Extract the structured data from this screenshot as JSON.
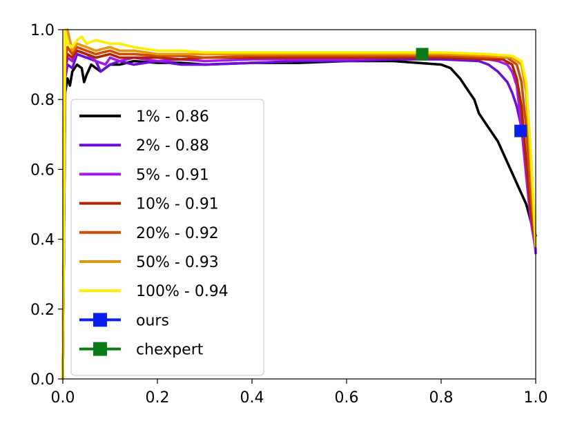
{
  "chart_data": {
    "type": "line",
    "title": "",
    "xlabel": "",
    "ylabel": "",
    "xlim": [
      0.0,
      1.0
    ],
    "ylim": [
      0.0,
      1.0
    ],
    "xticks": [
      "0.0",
      "0.2",
      "0.4",
      "0.6",
      "0.8",
      "1.0"
    ],
    "yticks": [
      "0.0",
      "0.2",
      "0.4",
      "0.6",
      "0.8",
      "1.0"
    ],
    "grid": false,
    "legend_position": "lower-left",
    "series": [
      {
        "name": "1% - 0.86",
        "color": "#000000",
        "x": [
          0.0,
          0.005,
          0.01,
          0.015,
          0.02,
          0.03,
          0.04,
          0.045,
          0.05,
          0.06,
          0.07,
          0.08,
          0.1,
          0.12,
          0.15,
          0.2,
          0.25,
          0.3,
          0.4,
          0.5,
          0.6,
          0.7,
          0.75,
          0.8,
          0.82,
          0.84,
          0.86,
          0.87,
          0.88,
          0.9,
          0.92,
          0.94,
          0.96,
          0.97,
          0.98,
          0.99,
          1.0
        ],
        "y": [
          0.0,
          0.82,
          0.86,
          0.84,
          0.88,
          0.9,
          0.89,
          0.85,
          0.87,
          0.9,
          0.89,
          0.88,
          0.9,
          0.9,
          0.91,
          0.905,
          0.905,
          0.9,
          0.905,
          0.905,
          0.91,
          0.91,
          0.905,
          0.9,
          0.89,
          0.86,
          0.82,
          0.8,
          0.76,
          0.72,
          0.68,
          0.62,
          0.56,
          0.53,
          0.5,
          0.45,
          0.41
        ]
      },
      {
        "name": "2% - 0.88",
        "color": "#6a0fd8",
        "x": [
          0.0,
          0.005,
          0.01,
          0.02,
          0.03,
          0.05,
          0.07,
          0.08,
          0.1,
          0.12,
          0.15,
          0.2,
          0.25,
          0.3,
          0.4,
          0.5,
          0.6,
          0.7,
          0.8,
          0.88,
          0.9,
          0.92,
          0.94,
          0.95,
          0.96,
          0.97,
          0.98,
          0.99,
          1.0
        ],
        "y": [
          0.0,
          0.86,
          0.9,
          0.89,
          0.93,
          0.92,
          0.91,
          0.88,
          0.9,
          0.91,
          0.9,
          0.91,
          0.9,
          0.9,
          0.905,
          0.91,
          0.91,
          0.915,
          0.915,
          0.91,
          0.9,
          0.88,
          0.85,
          0.82,
          0.78,
          0.72,
          0.62,
          0.5,
          0.36
        ]
      },
      {
        "name": "5% - 0.91",
        "color": "#a11ae8",
        "x": [
          0.0,
          0.005,
          0.01,
          0.02,
          0.03,
          0.05,
          0.07,
          0.09,
          0.1,
          0.12,
          0.15,
          0.2,
          0.25,
          0.3,
          0.4,
          0.5,
          0.6,
          0.7,
          0.8,
          0.9,
          0.92,
          0.94,
          0.95,
          0.96,
          0.97,
          0.98,
          0.99,
          1.0
        ],
        "y": [
          0.0,
          0.88,
          0.92,
          0.91,
          0.94,
          0.93,
          0.91,
          0.9,
          0.92,
          0.91,
          0.92,
          0.91,
          0.915,
          0.91,
          0.915,
          0.915,
          0.915,
          0.92,
          0.92,
          0.915,
          0.91,
          0.9,
          0.88,
          0.84,
          0.72,
          0.58,
          0.45,
          0.37
        ]
      },
      {
        "name": "10% - 0.91",
        "color": "#b22200",
        "x": [
          0.0,
          0.005,
          0.01,
          0.02,
          0.03,
          0.05,
          0.07,
          0.1,
          0.12,
          0.15,
          0.2,
          0.25,
          0.3,
          0.4,
          0.5,
          0.6,
          0.7,
          0.8,
          0.9,
          0.93,
          0.95,
          0.96,
          0.97,
          0.98,
          0.99,
          1.0
        ],
        "y": [
          0.0,
          0.9,
          0.93,
          0.92,
          0.94,
          0.93,
          0.92,
          0.93,
          0.92,
          0.92,
          0.92,
          0.915,
          0.92,
          0.92,
          0.92,
          0.92,
          0.92,
          0.92,
          0.915,
          0.915,
          0.9,
          0.86,
          0.78,
          0.62,
          0.48,
          0.38
        ]
      },
      {
        "name": "20% - 0.92",
        "color": "#cc4c02",
        "x": [
          0.0,
          0.005,
          0.01,
          0.02,
          0.03,
          0.05,
          0.07,
          0.1,
          0.12,
          0.15,
          0.2,
          0.25,
          0.3,
          0.4,
          0.5,
          0.6,
          0.7,
          0.8,
          0.9,
          0.94,
          0.96,
          0.97,
          0.98,
          0.99,
          1.0
        ],
        "y": [
          0.0,
          0.92,
          0.95,
          0.93,
          0.95,
          0.94,
          0.93,
          0.94,
          0.93,
          0.93,
          0.925,
          0.925,
          0.92,
          0.925,
          0.925,
          0.925,
          0.925,
          0.925,
          0.92,
          0.92,
          0.9,
          0.85,
          0.72,
          0.52,
          0.38
        ]
      },
      {
        "name": "50% - 0.93",
        "color": "#e8950c",
        "x": [
          0.0,
          0.005,
          0.01,
          0.02,
          0.03,
          0.05,
          0.07,
          0.1,
          0.12,
          0.15,
          0.2,
          0.25,
          0.3,
          0.4,
          0.5,
          0.6,
          0.7,
          0.8,
          0.9,
          0.95,
          0.97,
          0.98,
          0.99,
          1.0
        ],
        "y": [
          0.0,
          0.97,
          1.0,
          0.94,
          0.96,
          0.95,
          0.94,
          0.95,
          0.94,
          0.94,
          0.93,
          0.93,
          0.93,
          0.93,
          0.93,
          0.93,
          0.93,
          0.93,
          0.925,
          0.92,
          0.9,
          0.82,
          0.6,
          0.38
        ]
      },
      {
        "name": "100% - 0.94",
        "color": "#ffee00",
        "x": [
          0.0,
          0.005,
          0.01,
          0.02,
          0.03,
          0.04,
          0.05,
          0.07,
          0.1,
          0.12,
          0.15,
          0.2,
          0.25,
          0.3,
          0.4,
          0.5,
          0.6,
          0.7,
          0.8,
          0.9,
          0.95,
          0.97,
          0.98,
          0.99,
          1.0
        ],
        "y": [
          0.0,
          1.0,
          0.96,
          0.95,
          0.97,
          0.98,
          0.96,
          0.97,
          0.96,
          0.96,
          0.95,
          0.94,
          0.94,
          0.935,
          0.935,
          0.935,
          0.935,
          0.935,
          0.935,
          0.93,
          0.925,
          0.91,
          0.85,
          0.65,
          0.38
        ]
      }
    ],
    "markers": [
      {
        "name": "ours",
        "color": "#0a1ef0",
        "x": 0.968,
        "y": 0.71
      },
      {
        "name": "chexpert",
        "color": "#0a7a14",
        "x": 0.76,
        "y": 0.93
      }
    ]
  }
}
